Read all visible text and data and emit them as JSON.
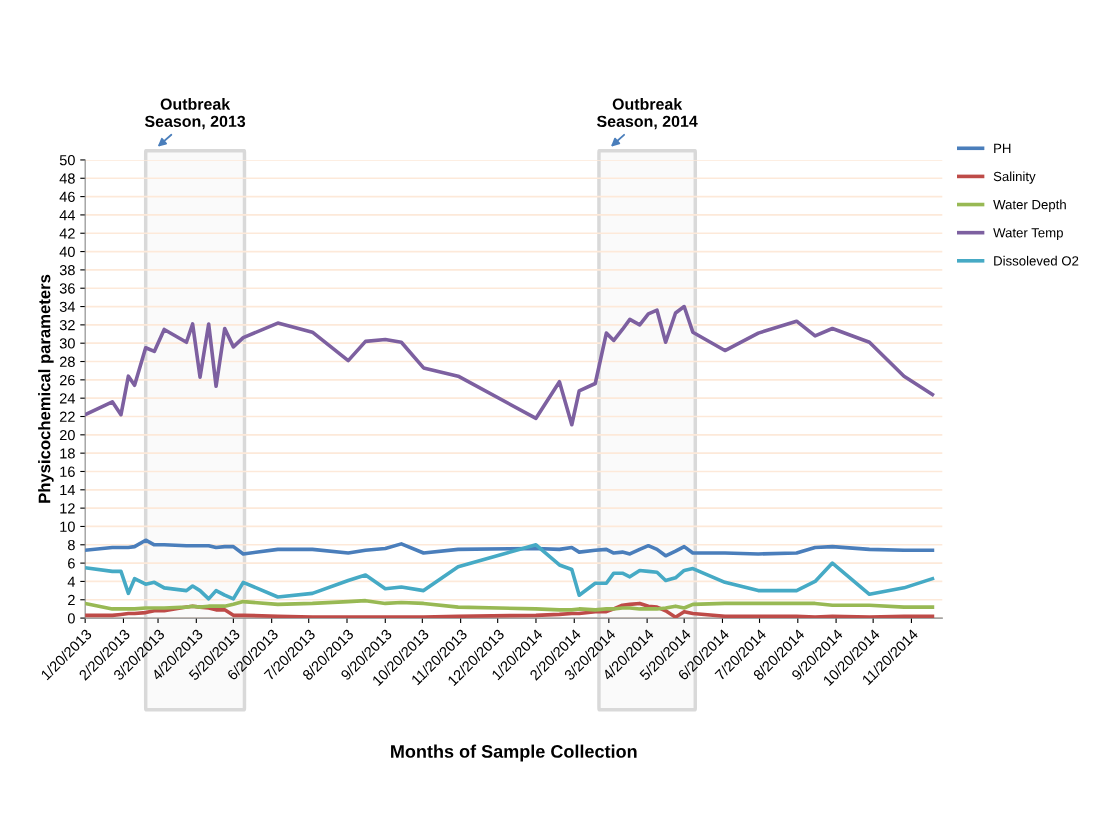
{
  "chart_data": {
    "type": "line",
    "xlabel": "Months of Sample Collection",
    "ylabel": "Physicochemical parameters",
    "x": [
      "2013-01-20",
      "2013-02-11",
      "2013-02-18",
      "2013-02-24",
      "2013-03-01",
      "2013-03-10",
      "2013-03-17",
      "2013-03-25",
      "2013-04-12",
      "2013-04-17",
      "2013-04-23",
      "2013-04-30",
      "2013-05-06",
      "2013-05-13",
      "2013-05-20",
      "2013-05-28",
      "2013-06-25",
      "2013-07-23",
      "2013-08-21",
      "2013-09-04",
      "2013-09-20",
      "2013-10-03",
      "2013-10-21",
      "2013-11-18",
      "2014-01-20",
      "2014-02-08",
      "2014-02-18",
      "2014-02-24",
      "2014-03-09",
      "2014-03-18",
      "2014-03-24",
      "2014-03-31",
      "2014-04-06",
      "2014-04-14",
      "2014-04-21",
      "2014-04-28",
      "2014-05-05",
      "2014-05-13",
      "2014-05-20",
      "2014-05-27",
      "2014-06-22",
      "2014-07-19",
      "2014-08-19",
      "2014-09-03",
      "2014-09-17",
      "2014-10-17",
      "2014-11-14",
      "2014-12-07"
    ],
    "series": [
      {
        "name": "PH",
        "color": "#4a7ebb",
        "values": [
          7.4,
          7.7,
          7.7,
          7.7,
          7.8,
          8.5,
          8.0,
          8.0,
          7.9,
          7.9,
          7.9,
          7.9,
          7.7,
          7.8,
          7.8,
          7.0,
          7.5,
          7.5,
          7.1,
          7.4,
          7.6,
          8.1,
          7.1,
          7.5,
          7.6,
          7.5,
          7.7,
          7.2,
          7.4,
          7.5,
          7.1,
          7.2,
          7.0,
          7.5,
          7.9,
          7.5,
          6.8,
          7.3,
          7.8,
          7.1,
          7.1,
          7.0,
          7.1,
          7.7,
          7.8,
          7.5,
          7.4,
          7.4
        ]
      },
      {
        "name": "Salinity",
        "color": "#be4b48",
        "values": [
          0.3,
          0.3,
          0.4,
          0.5,
          0.5,
          0.6,
          0.8,
          0.8,
          1.2,
          1.3,
          1.2,
          1.1,
          0.9,
          0.9,
          0.3,
          0.3,
          0.2,
          0.1,
          0.1,
          0.1,
          0.1,
          0.1,
          0.1,
          0.2,
          0.3,
          0.4,
          0.5,
          0.5,
          0.7,
          0.7,
          1.0,
          1.4,
          1.5,
          1.6,
          1.3,
          1.2,
          0.8,
          0.1,
          0.7,
          0.5,
          0.2,
          0.2,
          0.2,
          0.1,
          0.2,
          0.1,
          0.2,
          0.2
        ]
      },
      {
        "name": "Water Depth",
        "color": "#98b954",
        "values": [
          1.6,
          1.0,
          1.0,
          1.0,
          1.0,
          1.1,
          1.1,
          1.1,
          1.2,
          1.3,
          1.2,
          1.3,
          1.3,
          1.3,
          1.5,
          1.8,
          1.5,
          1.6,
          1.8,
          1.9,
          1.6,
          1.7,
          1.6,
          1.2,
          1.0,
          0.9,
          0.9,
          1.0,
          0.9,
          1.0,
          1.0,
          1.1,
          1.1,
          1.0,
          1.0,
          1.0,
          1.1,
          1.3,
          1.1,
          1.5,
          1.6,
          1.6,
          1.6,
          1.6,
          1.4,
          1.4,
          1.2,
          1.2
        ]
      },
      {
        "name": "Water Temp",
        "color": "#7d60a0",
        "values": [
          22.2,
          23.6,
          22.2,
          26.4,
          25.4,
          29.5,
          29.1,
          31.5,
          30.1,
          32.1,
          26.3,
          32.1,
          25.3,
          31.6,
          29.6,
          30.6,
          32.2,
          31.2,
          28.1,
          30.2,
          30.4,
          30.1,
          27.3,
          26.4,
          21.8,
          25.8,
          21.1,
          24.8,
          25.6,
          31.1,
          30.3,
          31.5,
          32.6,
          32.0,
          33.2,
          33.6,
          30.1,
          33.3,
          34.0,
          31.2,
          29.2,
          31.1,
          32.4,
          30.8,
          31.6,
          30.1,
          26.4,
          24.4
        ]
      },
      {
        "name": "Dissoleved O2",
        "color": "#46aac5",
        "values": [
          5.5,
          5.1,
          5.1,
          2.7,
          4.3,
          3.7,
          3.9,
          3.3,
          3.0,
          3.5,
          3.0,
          2.1,
          3.0,
          2.5,
          2.1,
          3.9,
          2.3,
          2.7,
          4.1,
          4.7,
          3.2,
          3.4,
          3.0,
          5.6,
          8.0,
          5.8,
          5.3,
          2.5,
          3.8,
          3.8,
          4.9,
          4.9,
          4.5,
          5.2,
          5.1,
          5.0,
          4.1,
          4.4,
          5.2,
          5.4,
          3.9,
          3.0,
          3.0,
          4.0,
          6.0,
          2.6,
          3.3,
          4.3
        ]
      }
    ],
    "xlim": [
      "2013-01-20",
      "2014-12-15"
    ],
    "xticks": [
      {
        "value": "2013-01-20",
        "label": "1/20/2013"
      },
      {
        "value": "2013-02-20",
        "label": "2/20/2013"
      },
      {
        "value": "2013-03-20",
        "label": "3/20/2013"
      },
      {
        "value": "2013-04-20",
        "label": "4/20/2013"
      },
      {
        "value": "2013-05-20",
        "label": "5/20/2013"
      },
      {
        "value": "2013-06-20",
        "label": "6/20/2013"
      },
      {
        "value": "2013-07-20",
        "label": "7/20/2013"
      },
      {
        "value": "2013-08-20",
        "label": "8/20/2013"
      },
      {
        "value": "2013-09-20",
        "label": "9/20/2013"
      },
      {
        "value": "2013-10-20",
        "label": "10/20/2013"
      },
      {
        "value": "2013-11-20",
        "label": "11/20/2013"
      },
      {
        "value": "2013-12-20",
        "label": "12/20/2013"
      },
      {
        "value": "2014-01-20",
        "label": "1/20/2014"
      },
      {
        "value": "2014-02-20",
        "label": "2/20/2014"
      },
      {
        "value": "2014-03-20",
        "label": "3/20/2014"
      },
      {
        "value": "2014-04-20",
        "label": "4/20/2014"
      },
      {
        "value": "2014-05-20",
        "label": "5/20/2014"
      },
      {
        "value": "2014-06-20",
        "label": "6/20/2014"
      },
      {
        "value": "2014-07-20",
        "label": "7/20/2014"
      },
      {
        "value": "2014-08-20",
        "label": "8/20/2014"
      },
      {
        "value": "2014-09-20",
        "label": "9/20/2014"
      },
      {
        "value": "2014-10-20",
        "label": "10/20/2014"
      },
      {
        "value": "2014-11-20",
        "label": "11/20/2014"
      }
    ],
    "ylim": [
      0,
      50
    ],
    "yticks": [
      0,
      2,
      4,
      6,
      8,
      10,
      12,
      14,
      16,
      18,
      20,
      22,
      24,
      26,
      28,
      30,
      32,
      34,
      36,
      38,
      40,
      42,
      44,
      46,
      48,
      50
    ],
    "bands": [
      {
        "axis": "x",
        "from": "2013-03-10",
        "to": "2013-05-29",
        "label": "Outbreak\nSeason, 2013",
        "color": "#d9d9d9"
      },
      {
        "axis": "x",
        "from": "2014-03-12",
        "to": "2014-05-29",
        "label": "Outbreak\nSeason, 2014",
        "color": "#d9d9d9"
      }
    ],
    "grid": "y",
    "legend": "right",
    "marker": "none",
    "line_style": "solid"
  }
}
